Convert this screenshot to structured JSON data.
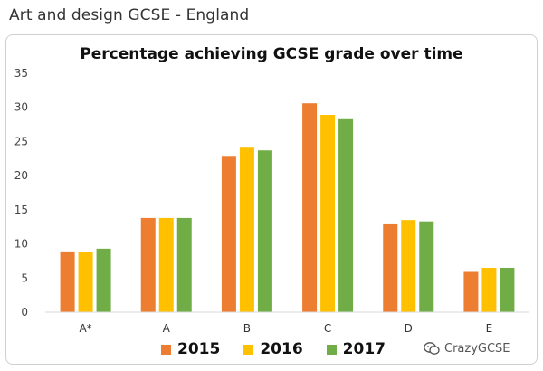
{
  "page": {
    "heading": "Art and design GCSE - England"
  },
  "watermark": {
    "text": "CrazyGCSE",
    "icon": "wechat-icon"
  },
  "colors": {
    "2015": "#ed7d31",
    "2016": "#ffc000",
    "2017": "#70ad47"
  },
  "chart_data": {
    "type": "bar",
    "title": "Percentage achieving GCSE grade over time",
    "xlabel": "",
    "ylabel": "",
    "categories": [
      "A*",
      "A",
      "B",
      "C",
      "D",
      "E"
    ],
    "series": [
      {
        "name": "2015",
        "color": "#ed7d31",
        "values": [
          8.9,
          13.8,
          22.9,
          30.6,
          13.0,
          5.9
        ]
      },
      {
        "name": "2016",
        "color": "#ffc000",
        "values": [
          8.8,
          13.8,
          24.1,
          28.9,
          13.5,
          6.5
        ]
      },
      {
        "name": "2017",
        "color": "#70ad47",
        "values": [
          9.3,
          13.8,
          23.7,
          28.4,
          13.3,
          6.5
        ]
      }
    ],
    "ylim": [
      0,
      35
    ],
    "yticks": [
      0,
      5,
      10,
      15,
      20,
      25,
      30,
      35
    ],
    "grid": false,
    "legend": "bottom"
  }
}
